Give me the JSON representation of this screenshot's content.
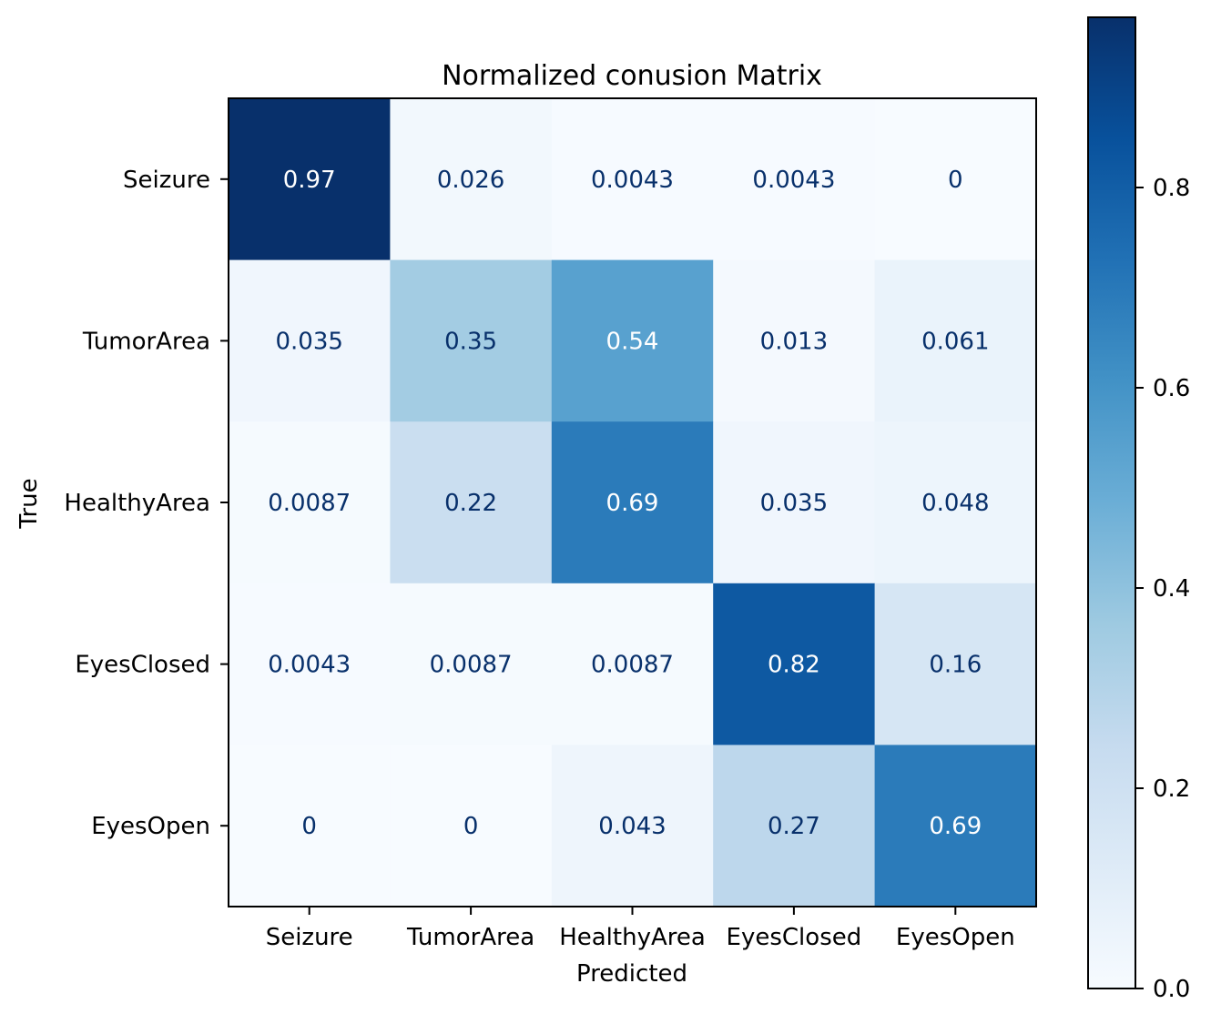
{
  "chart_data": {
    "type": "heatmap",
    "title": "Normalized conusion Matrix",
    "xlabel": "Predicted",
    "ylabel": "True",
    "x_categories": [
      "Seizure",
      "TumorArea",
      "HealthyArea",
      "EyesClosed",
      "EyesOpen"
    ],
    "y_categories": [
      "Seizure",
      "TumorArea",
      "HealthyArea",
      "EyesClosed",
      "EyesOpen"
    ],
    "values": [
      [
        0.97,
        0.026,
        0.0043,
        0.0043,
        0
      ],
      [
        0.035,
        0.35,
        0.54,
        0.013,
        0.061
      ],
      [
        0.0087,
        0.22,
        0.69,
        0.035,
        0.048
      ],
      [
        0.0043,
        0.0087,
        0.0087,
        0.82,
        0.16
      ],
      [
        0,
        0,
        0.043,
        0.27,
        0.69
      ]
    ],
    "value_labels": [
      [
        "0.97",
        "0.026",
        "0.0043",
        "0.0043",
        "0"
      ],
      [
        "0.035",
        "0.35",
        "0.54",
        "0.013",
        "0.061"
      ],
      [
        "0.0087",
        "0.22",
        "0.69",
        "0.035",
        "0.048"
      ],
      [
        "0.0043",
        "0.0087",
        "0.0087",
        "0.82",
        "0.16"
      ],
      [
        "0",
        "0",
        "0.043",
        "0.27",
        "0.69"
      ]
    ],
    "colormap": "Blues",
    "colorbar": {
      "range": [
        0,
        0.97
      ],
      "ticks": [
        0.0,
        0.2,
        0.4,
        0.6,
        0.8
      ],
      "tick_labels": [
        "0.0",
        "0.2",
        "0.4",
        "0.6",
        "0.8"
      ]
    },
    "colors": {
      "dark_text": "#08306b",
      "light_text": "#ffffff",
      "frame": "#000000"
    }
  }
}
